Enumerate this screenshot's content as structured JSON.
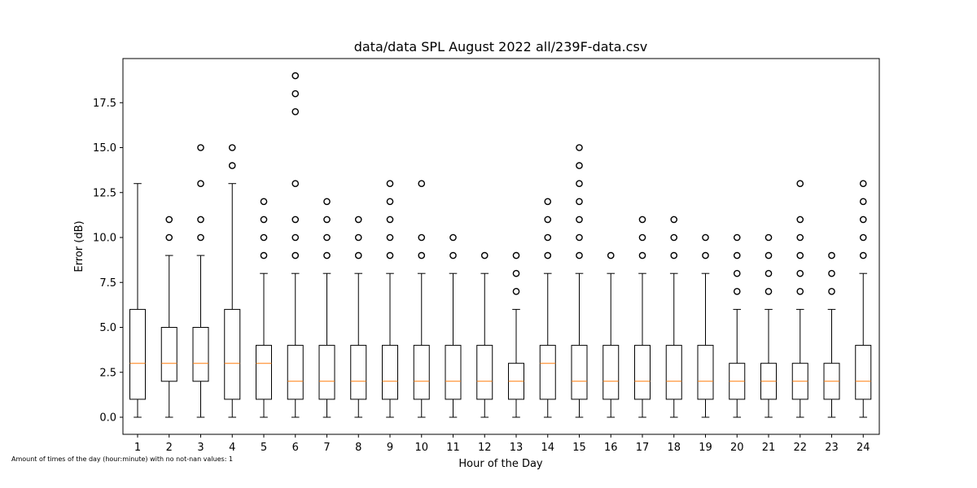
{
  "chart_data": {
    "type": "box",
    "title": "data/data SPL August 2022 all/239F-data.csv",
    "xlabel": "Hour of the Day",
    "ylabel": "Error (dB)",
    "ylim": [
      -1,
      19.7
    ],
    "yticks": [
      "0.0",
      "2.5",
      "5.0",
      "7.5",
      "10.0",
      "12.5",
      "15.0",
      "17.5"
    ],
    "ytick_values": [
      0,
      2.5,
      5,
      7.5,
      10,
      12.5,
      15,
      17.5
    ],
    "grid": false,
    "colors": {
      "box": "#000000",
      "median": "#ff7f0e",
      "flier": "#000000"
    },
    "boxes": [
      {
        "category": "1",
        "whislo": 0,
        "q1": 1,
        "med": 3,
        "q3": 6,
        "whishi": 13,
        "fliers": []
      },
      {
        "category": "2",
        "whislo": 0,
        "q1": 2,
        "med": 3,
        "q3": 5,
        "whishi": 9,
        "fliers": [
          10,
          11
        ]
      },
      {
        "category": "3",
        "whislo": 0,
        "q1": 2,
        "med": 3,
        "q3": 5,
        "whishi": 9,
        "fliers": [
          10,
          11,
          13,
          15
        ]
      },
      {
        "category": "4",
        "whislo": 0,
        "q1": 1,
        "med": 3,
        "q3": 6,
        "whishi": 13,
        "fliers": [
          14,
          15
        ]
      },
      {
        "category": "5",
        "whislo": 0,
        "q1": 1,
        "med": 3,
        "q3": 4,
        "whishi": 8,
        "fliers": [
          9,
          10,
          11,
          12
        ]
      },
      {
        "category": "6",
        "whislo": 0,
        "q1": 1,
        "med": 2,
        "q3": 4,
        "whishi": 8,
        "fliers": [
          9,
          10,
          11,
          13,
          17,
          18,
          19
        ]
      },
      {
        "category": "7",
        "whislo": 0,
        "q1": 1,
        "med": 2,
        "q3": 4,
        "whishi": 8,
        "fliers": [
          9,
          10,
          11,
          12
        ]
      },
      {
        "category": "8",
        "whislo": 0,
        "q1": 1,
        "med": 2,
        "q3": 4,
        "whishi": 8,
        "fliers": [
          9,
          10,
          11
        ]
      },
      {
        "category": "9",
        "whislo": 0,
        "q1": 1,
        "med": 2,
        "q3": 4,
        "whishi": 8,
        "fliers": [
          9,
          10,
          11,
          12,
          13
        ]
      },
      {
        "category": "10",
        "whislo": 0,
        "q1": 1,
        "med": 2,
        "q3": 4,
        "whishi": 8,
        "fliers": [
          9,
          10,
          13
        ]
      },
      {
        "category": "11",
        "whislo": 0,
        "q1": 1,
        "med": 2,
        "q3": 4,
        "whishi": 8,
        "fliers": [
          9,
          10
        ]
      },
      {
        "category": "12",
        "whislo": 0,
        "q1": 1,
        "med": 2,
        "q3": 4,
        "whishi": 8,
        "fliers": [
          9
        ]
      },
      {
        "category": "13",
        "whislo": 0,
        "q1": 1,
        "med": 2,
        "q3": 3,
        "whishi": 6,
        "fliers": [
          7,
          8,
          9
        ]
      },
      {
        "category": "14",
        "whislo": 0,
        "q1": 1,
        "med": 3,
        "q3": 4,
        "whishi": 8,
        "fliers": [
          9,
          10,
          11,
          12
        ]
      },
      {
        "category": "15",
        "whislo": 0,
        "q1": 1,
        "med": 2,
        "q3": 4,
        "whishi": 8,
        "fliers": [
          9,
          10,
          11,
          12,
          13,
          14,
          15
        ]
      },
      {
        "category": "16",
        "whislo": 0,
        "q1": 1,
        "med": 2,
        "q3": 4,
        "whishi": 8,
        "fliers": [
          9
        ]
      },
      {
        "category": "17",
        "whislo": 0,
        "q1": 1,
        "med": 2,
        "q3": 4,
        "whishi": 8,
        "fliers": [
          9,
          10,
          11
        ]
      },
      {
        "category": "18",
        "whislo": 0,
        "q1": 1,
        "med": 2,
        "q3": 4,
        "whishi": 8,
        "fliers": [
          9,
          10,
          11
        ]
      },
      {
        "category": "19",
        "whislo": 0,
        "q1": 1,
        "med": 2,
        "q3": 4,
        "whishi": 8,
        "fliers": [
          9,
          10
        ]
      },
      {
        "category": "20",
        "whislo": 0,
        "q1": 1,
        "med": 2,
        "q3": 3,
        "whishi": 6,
        "fliers": [
          7,
          8,
          9,
          10
        ]
      },
      {
        "category": "21",
        "whislo": 0,
        "q1": 1,
        "med": 2,
        "q3": 3,
        "whishi": 6,
        "fliers": [
          7,
          8,
          9,
          10
        ]
      },
      {
        "category": "22",
        "whislo": 0,
        "q1": 1,
        "med": 2,
        "q3": 3,
        "whishi": 6,
        "fliers": [
          7,
          8,
          9,
          10,
          11,
          13
        ]
      },
      {
        "category": "23",
        "whislo": 0,
        "q1": 1,
        "med": 2,
        "q3": 3,
        "whishi": 6,
        "fliers": [
          7,
          8,
          9
        ]
      },
      {
        "category": "24",
        "whislo": 0,
        "q1": 1,
        "med": 2,
        "q3": 4,
        "whishi": 8,
        "fliers": [
          9,
          10,
          11,
          12,
          13
        ]
      }
    ],
    "footnote": "Amount of times of the day (hour:minute) with no not-nan values: 1"
  }
}
